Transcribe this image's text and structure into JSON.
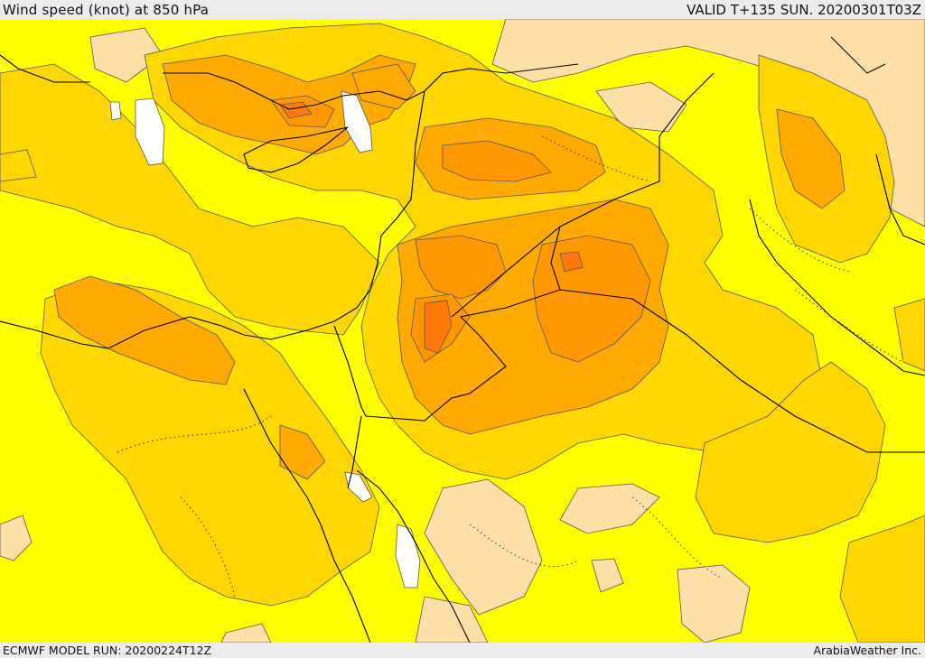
{
  "header": {
    "title": "Wind speed (knot) at 850 hPa",
    "valid": "VALID T+135 SUN. 20200301T03Z"
  },
  "footer": {
    "model_run": "ECMWF MODEL RUN: 20200224T12Z",
    "credit": "ArabiaWeather Inc."
  },
  "colors": {
    "level_0_5": "#ffffff",
    "level_5_10": "#ffdfa8",
    "level_10_15": "#ffff00",
    "level_15_20": "#ffd700",
    "level_20_25": "#ffaa00",
    "level_25_30": "#ff9800",
    "level_30_35": "#ff7a0a",
    "contour": "#555555",
    "coastline": "#000000"
  }
}
